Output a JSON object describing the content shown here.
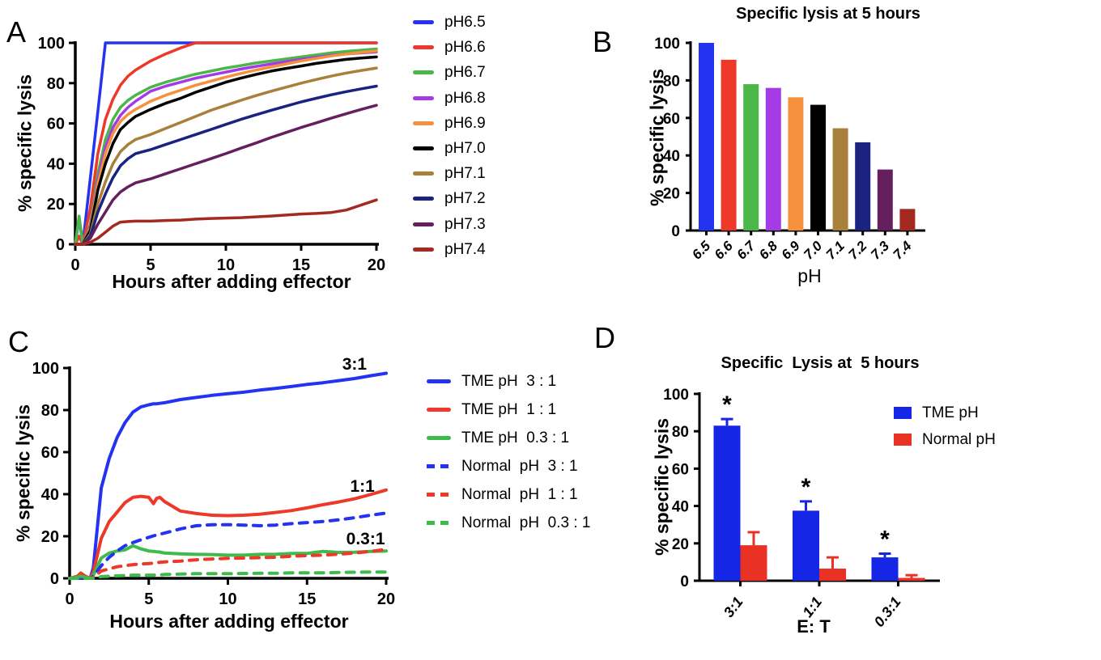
{
  "chart_data": [
    {
      "id": "A",
      "panel_label": "A",
      "type": "line",
      "title": "",
      "xlabel": "Hours after adding effector",
      "ylabel": "% specific lysis",
      "xlim": [
        0,
        20
      ],
      "ylim": [
        0,
        100
      ],
      "xticks": [
        0,
        5,
        10,
        15,
        20
      ],
      "yticks": [
        0,
        20,
        40,
        60,
        80,
        100
      ],
      "legend_position": "right",
      "grid": false,
      "x": [
        0,
        0.25,
        0.5,
        1,
        1.5,
        2,
        2.5,
        3,
        3.5,
        4,
        5,
        6,
        7,
        8,
        9,
        10,
        11,
        12,
        13,
        14,
        15,
        16,
        17,
        18,
        19,
        20
      ],
      "series": [
        {
          "name": "pH6.5",
          "color": "#2433F0",
          "style": "solid",
          "values": [
            0,
            13,
            0,
            33,
            66,
            100,
            100,
            100,
            100,
            100,
            100,
            100,
            100,
            100,
            100,
            100,
            100,
            100,
            100,
            100,
            100,
            100,
            100,
            100,
            100,
            100
          ]
        },
        {
          "name": "pH6.6",
          "color": "#ED382A",
          "style": "solid",
          "values": [
            0,
            4,
            0,
            18,
            45,
            62,
            72,
            79,
            83.5,
            86.5,
            91,
            94.5,
            97.5,
            100,
            100,
            100,
            100,
            100,
            100,
            100,
            100,
            100,
            100,
            100,
            100,
            100
          ]
        },
        {
          "name": "pH6.7",
          "color": "#4BB749",
          "style": "solid",
          "values": [
            0,
            14,
            0,
            10,
            35,
            52,
            62,
            68,
            71.5,
            74,
            78,
            80.5,
            82.5,
            84.5,
            86,
            87.5,
            88.7,
            90,
            91,
            92,
            93,
            94,
            95,
            95.8,
            96.4,
            97
          ]
        },
        {
          "name": "pH6.8",
          "color": "#A43BE6",
          "style": "solid",
          "values": [
            0,
            0,
            0,
            9,
            32,
            48,
            58,
            64,
            68,
            71,
            76,
            78.5,
            80.5,
            82.5,
            84,
            85.5,
            87,
            88.3,
            89.5,
            90.7,
            91.8,
            92.8,
            93.8,
            94.5,
            95,
            95.5
          ]
        },
        {
          "name": "pH6.9",
          "color": "#F5913C",
          "style": "solid",
          "values": [
            0,
            0,
            0,
            8,
            30,
            45,
            55,
            61,
            64.5,
            67,
            71,
            74,
            76.5,
            79,
            81,
            83,
            84.8,
            86.5,
            88,
            89.5,
            91,
            92.3,
            93.5,
            94.5,
            95.3,
            96
          ]
        },
        {
          "name": "pH7.0",
          "color": "#000000",
          "style": "solid",
          "values": [
            0,
            0,
            0,
            7,
            27,
            40,
            50,
            57,
            60.5,
            63.5,
            67,
            70,
            72.5,
            75.5,
            78,
            80.5,
            82.5,
            84.3,
            86,
            87.3,
            88.5,
            89.8,
            90.8,
            91.8,
            92.5,
            93
          ]
        },
        {
          "name": "pH7.1",
          "color": "#A8803C",
          "style": "solid",
          "values": [
            0,
            0,
            0,
            5,
            20,
            31,
            40,
            46,
            49.5,
            52,
            54.5,
            57.5,
            60.5,
            63.5,
            66.5,
            69,
            71.5,
            73.8,
            76,
            78,
            80,
            81.8,
            83.5,
            85,
            86.3,
            87.5
          ]
        },
        {
          "name": "pH7.2",
          "color": "#1A2380",
          "style": "solid",
          "values": [
            0,
            0,
            0,
            4,
            16,
            25,
            33,
            39,
            42.5,
            45,
            47,
            49.5,
            52,
            54.5,
            57,
            59.5,
            62,
            64.3,
            66.5,
            68.6,
            70.7,
            72.5,
            74.2,
            75.8,
            77.2,
            78.5
          ]
        },
        {
          "name": "pH7.3",
          "color": "#661F5E",
          "style": "solid",
          "values": [
            0,
            0,
            0,
            3,
            10,
            16,
            22,
            26,
            28.5,
            30.5,
            32.5,
            35,
            37.5,
            40,
            42.5,
            45,
            47.7,
            50.3,
            53,
            55.5,
            58,
            60.3,
            62.6,
            64.8,
            67,
            69
          ]
        },
        {
          "name": "pH7.4",
          "color": "#A42A21",
          "style": "solid",
          "values": [
            0,
            0,
            0,
            1,
            3,
            6,
            9,
            11,
            11.3,
            11.5,
            11.5,
            11.8,
            12,
            12.5,
            12.8,
            13,
            13.2,
            13.6,
            14,
            14.5,
            15,
            15.3,
            15.8,
            17,
            19.5,
            22
          ]
        }
      ]
    },
    {
      "id": "B",
      "panel_label": "B",
      "type": "bar",
      "title": "Specific lysis at 5 hours",
      "xlabel": "pH",
      "ylabel": "% specific lysis",
      "ylim": [
        0,
        100
      ],
      "yticks": [
        0,
        20,
        40,
        60,
        80,
        100
      ],
      "grid": false,
      "categories": [
        "6.5",
        "6.6",
        "6.7",
        "6.8",
        "6.9",
        "7.0",
        "7.1",
        "7.2",
        "7.3",
        "7.4"
      ],
      "values": [
        100,
        91,
        78,
        76,
        71,
        67,
        54.5,
        47,
        32.5,
        11.5
      ],
      "colors": [
        "#2433F0",
        "#ED382A",
        "#4BB749",
        "#A43BE6",
        "#F5913C",
        "#000000",
        "#A8803C",
        "#1A2380",
        "#661F5E",
        "#A42A21"
      ]
    },
    {
      "id": "C",
      "panel_label": "C",
      "type": "line",
      "title": "",
      "xlabel": "Hours after adding effector",
      "ylabel": "% specific lysis",
      "xlim": [
        0,
        20
      ],
      "ylim": [
        0,
        100
      ],
      "xticks": [
        0,
        5,
        10,
        15,
        20
      ],
      "yticks": [
        0,
        20,
        40,
        60,
        80,
        100
      ],
      "legend_position": "right",
      "grid": false,
      "x": [
        0,
        0.5,
        0.7,
        1,
        1.3,
        1.5,
        2,
        2.5,
        3,
        3.5,
        4,
        4.5,
        5,
        5.3,
        5.5,
        5.7,
        6,
        7,
        8,
        9,
        10,
        11,
        12,
        13,
        14,
        15,
        16,
        17,
        18,
        19,
        20
      ],
      "series": [
        {
          "name": "TME pH  3 : 1",
          "color": "#2433F0",
          "style": "solid",
          "values": [
            0,
            0,
            0,
            0,
            0,
            5,
            43,
            57,
            67,
            74,
            79,
            81.5,
            82.5,
            83,
            83,
            83.2,
            83.5,
            85,
            86,
            87,
            87.8,
            88.5,
            89.5,
            90.3,
            91.2,
            92.2,
            93,
            94,
            95,
            96.3,
            97.5
          ]
        },
        {
          "name": "TME pH  1 : 1",
          "color": "#ED382A",
          "style": "solid",
          "values": [
            0,
            1,
            2.5,
            1,
            0,
            3,
            19,
            27,
            31.5,
            36,
            38.5,
            39,
            38.5,
            35.5,
            38,
            38.5,
            36.5,
            32,
            30.8,
            30,
            29.8,
            30,
            30.5,
            31.3,
            32.2,
            33.5,
            35,
            36.3,
            37.8,
            39.8,
            42
          ]
        },
        {
          "name": "TME pH  0.3 : 1",
          "color": "#3EBB4B",
          "style": "solid",
          "values": [
            0,
            0.5,
            1,
            0.5,
            0,
            1.5,
            9.6,
            12,
            13,
            13.5,
            15.5,
            14,
            13,
            12.8,
            12.6,
            12.5,
            12,
            11.6,
            11.4,
            11.3,
            11,
            11,
            11.4,
            11.4,
            11.8,
            11.8,
            12.8,
            12.3,
            12.4,
            12.8,
            13
          ]
        },
        {
          "name": "Normal  pH  3 : 1",
          "color": "#2433F0",
          "style": "dashed",
          "values": [
            0,
            0,
            0,
            0,
            0,
            1,
            6,
            10,
            13,
            15.5,
            17,
            18.3,
            19.5,
            20.2,
            20.6,
            21,
            21.5,
            23.5,
            25,
            25.5,
            25.5,
            25.3,
            25,
            25.3,
            26,
            26.5,
            27,
            27.8,
            28.8,
            30,
            31
          ]
        },
        {
          "name": "Normal  pH  1 : 1",
          "color": "#ED382A",
          "style": "dashed",
          "values": [
            0,
            0,
            0,
            0,
            0,
            0.5,
            3.5,
            4.5,
            5.5,
            6,
            6.5,
            6.8,
            7,
            7.2,
            7.4,
            7.6,
            7.8,
            8.2,
            8.8,
            9.2,
            9.5,
            9.6,
            9.8,
            10,
            10.5,
            10.8,
            11,
            11.5,
            12,
            12.8,
            13.7
          ]
        },
        {
          "name": "Normal  pH  0.3 : 1",
          "color": "#3EBB4B",
          "style": "dashed",
          "values": [
            0,
            0,
            0,
            0,
            0,
            0,
            0.8,
            1,
            1.2,
            1.3,
            1.5,
            1.5,
            1.5,
            1.5,
            1.6,
            1.6,
            1.8,
            2,
            2.2,
            2.2,
            2.2,
            2.3,
            2.4,
            2.4,
            2.6,
            2.6,
            2.6,
            2.8,
            2.9,
            3,
            3
          ]
        }
      ],
      "annotations": [
        {
          "text": "3:1",
          "x": 18.0,
          "y": 102
        },
        {
          "text": "1:1",
          "x": 18.5,
          "y": 44
        },
        {
          "text": "0.3:1",
          "x": 18.7,
          "y": 19
        }
      ]
    },
    {
      "id": "D",
      "panel_label": "D",
      "type": "grouped-bar",
      "title": "Specific  Lysis at  5 hours",
      "xlabel": "E: T",
      "ylabel": "% specific lysis",
      "ylim": [
        0,
        100
      ],
      "yticks": [
        0,
        20,
        40,
        60,
        80,
        100
      ],
      "legend_position": "top-right",
      "grid": false,
      "categories": [
        "3:1",
        "1:1",
        "0.3:1"
      ],
      "series": [
        {
          "name": "TME pH",
          "color": "#1626E6",
          "values": [
            83,
            37.5,
            12.5
          ],
          "errors": [
            3.5,
            5,
            2
          ],
          "sig": [
            "*",
            "*",
            "*"
          ]
        },
        {
          "name": "Normal pH",
          "color": "#E93223",
          "values": [
            19,
            6.5,
            1.5
          ],
          "errors": [
            7,
            6,
            1.5
          ],
          "sig": [
            "",
            "",
            ""
          ]
        }
      ]
    }
  ]
}
